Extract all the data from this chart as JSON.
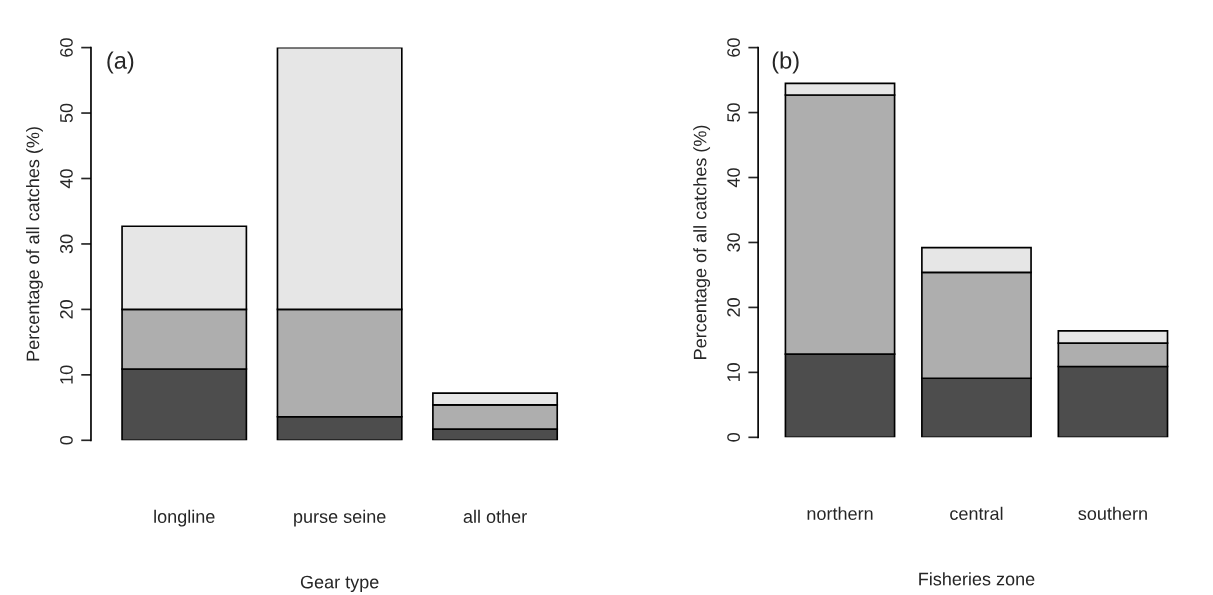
{
  "chart_data": [
    {
      "type": "bar",
      "stacked": true,
      "categories": [
        "longline",
        "purse seine",
        "all other"
      ],
      "xlabel": "Gear type",
      "ylabel": "Percentage of all catches (%)",
      "ylim": [
        0,
        60
      ],
      "yticks": [
        0,
        10,
        20,
        30,
        40,
        50,
        60
      ],
      "annotations": [
        "(a)"
      ],
      "series": [
        {
          "color": "#4d4d4d",
          "values": [
            10.9,
            3.6,
            1.7
          ]
        },
        {
          "color": "#aeaeae",
          "values": [
            9.1,
            16.4,
            3.7
          ]
        },
        {
          "color": "#e6e6e6",
          "values": [
            12.7,
            40.0,
            1.8
          ]
        }
      ]
    },
    {
      "type": "bar",
      "stacked": true,
      "categories": [
        "northern",
        "central",
        "southern"
      ],
      "xlabel": "Fisheries zone",
      "ylabel": "Percentage of all catches (%)",
      "ylim": [
        0,
        60
      ],
      "yticks": [
        0,
        10,
        20,
        30,
        40,
        50,
        60
      ],
      "annotations": [
        "(b)"
      ],
      "series": [
        {
          "color": "#4d4d4d",
          "values": [
            12.8,
            9.1,
            10.9
          ]
        },
        {
          "color": "#aeaeae",
          "values": [
            39.9,
            16.3,
            3.6
          ]
        },
        {
          "color": "#e6e6e6",
          "values": [
            1.8,
            3.8,
            1.9
          ]
        }
      ]
    }
  ]
}
